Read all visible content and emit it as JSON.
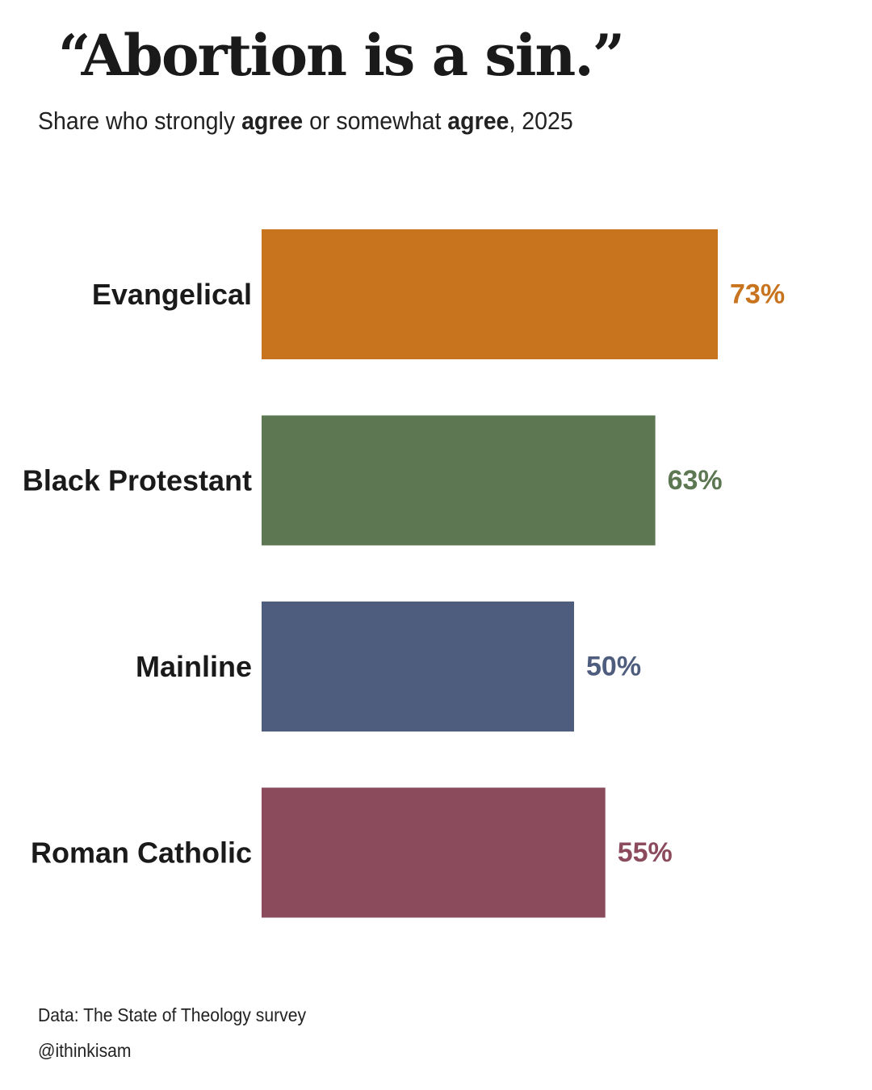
{
  "title": "“Abortion is a sin.”",
  "subtitle": {
    "part1": "Share who strongly ",
    "bold1": "agree",
    "part2": " or somewhat ",
    "bold2": "agree",
    "part3": ", 2025"
  },
  "footer": {
    "source": "Data: The State of Theology survey",
    "credit": "@ithinkisam"
  },
  "chart_data": {
    "type": "bar",
    "orientation": "horizontal",
    "categories": [
      "Evangelical",
      "Black Protestant",
      "Mainline",
      "Roman Catholic"
    ],
    "values": [
      73,
      63,
      50,
      55
    ],
    "value_labels": [
      "73%",
      "63%",
      "50%",
      "55%"
    ],
    "colors": [
      "#c8731d",
      "#5c7752",
      "#4e5d7e",
      "#8c4a5d"
    ],
    "unit": "%",
    "xlim": [
      0,
      100
    ],
    "grid": false,
    "legend": "none",
    "xlabel": "",
    "ylabel": ""
  }
}
